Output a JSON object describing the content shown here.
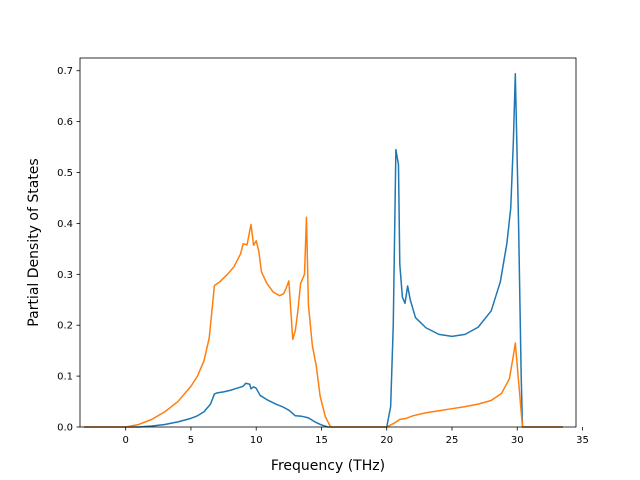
{
  "chart_data": {
    "type": "line",
    "title": "",
    "xlabel": "Frequency (THz)",
    "ylabel": "Partial Density of States",
    "xlim": [
      -3.5,
      34.5
    ],
    "ylim": [
      0.0,
      0.725
    ],
    "xticks": [
      0,
      5,
      10,
      15,
      20,
      25,
      30,
      35
    ],
    "yticks": [
      0.0,
      0.1,
      0.2,
      0.3,
      0.4,
      0.5,
      0.6,
      0.7
    ],
    "xtick_labels": [
      "0",
      "5",
      "10",
      "15",
      "20",
      "25",
      "30",
      "35"
    ],
    "ytick_labels": [
      "0.0",
      "0.1",
      "0.2",
      "0.3",
      "0.4",
      "0.5",
      "0.6",
      "0.7"
    ],
    "grid": false,
    "legend": false,
    "series": [
      {
        "color": "#1f77b4",
        "points": [
          [
            -3.2,
            0.0
          ],
          [
            0.0,
            0.0
          ],
          [
            1.0,
            0.0
          ],
          [
            2.0,
            0.002
          ],
          [
            3.0,
            0.005
          ],
          [
            4.0,
            0.01
          ],
          [
            5.0,
            0.017
          ],
          [
            5.5,
            0.022
          ],
          [
            6.0,
            0.03
          ],
          [
            6.5,
            0.045
          ],
          [
            6.8,
            0.065
          ],
          [
            7.0,
            0.067
          ],
          [
            7.5,
            0.069
          ],
          [
            8.0,
            0.072
          ],
          [
            8.5,
            0.076
          ],
          [
            9.0,
            0.08
          ],
          [
            9.2,
            0.086
          ],
          [
            9.5,
            0.084
          ],
          [
            9.6,
            0.075
          ],
          [
            9.8,
            0.079
          ],
          [
            10.0,
            0.076
          ],
          [
            10.3,
            0.062
          ],
          [
            10.8,
            0.054
          ],
          [
            11.5,
            0.045
          ],
          [
            12.0,
            0.04
          ],
          [
            12.5,
            0.033
          ],
          [
            13.0,
            0.022
          ],
          [
            13.5,
            0.021
          ],
          [
            14.0,
            0.018
          ],
          [
            14.5,
            0.01
          ],
          [
            15.0,
            0.004
          ],
          [
            15.5,
            0.0
          ],
          [
            20.0,
            0.0
          ],
          [
            20.3,
            0.04
          ],
          [
            20.5,
            0.2
          ],
          [
            20.7,
            0.545
          ],
          [
            20.9,
            0.515
          ],
          [
            21.0,
            0.32
          ],
          [
            21.2,
            0.255
          ],
          [
            21.4,
            0.243
          ],
          [
            21.6,
            0.277
          ],
          [
            21.8,
            0.25
          ],
          [
            22.2,
            0.215
          ],
          [
            23.0,
            0.195
          ],
          [
            24.0,
            0.182
          ],
          [
            25.0,
            0.178
          ],
          [
            26.0,
            0.182
          ],
          [
            27.0,
            0.196
          ],
          [
            28.0,
            0.228
          ],
          [
            28.7,
            0.285
          ],
          [
            29.2,
            0.36
          ],
          [
            29.5,
            0.43
          ],
          [
            29.7,
            0.56
          ],
          [
            29.85,
            0.694
          ],
          [
            30.1,
            0.4
          ],
          [
            30.3,
            0.1
          ],
          [
            30.4,
            0.0
          ],
          [
            33.5,
            0.0
          ]
        ]
      },
      {
        "color": "#ff7f0e",
        "points": [
          [
            -3.2,
            0.0
          ],
          [
            0.0,
            0.0
          ],
          [
            1.0,
            0.005
          ],
          [
            2.0,
            0.015
          ],
          [
            3.0,
            0.03
          ],
          [
            4.0,
            0.05
          ],
          [
            5.0,
            0.08
          ],
          [
            5.5,
            0.1
          ],
          [
            6.0,
            0.13
          ],
          [
            6.4,
            0.175
          ],
          [
            6.8,
            0.278
          ],
          [
            7.2,
            0.285
          ],
          [
            7.8,
            0.3
          ],
          [
            8.3,
            0.315
          ],
          [
            8.8,
            0.34
          ],
          [
            9.0,
            0.36
          ],
          [
            9.3,
            0.358
          ],
          [
            9.6,
            0.398
          ],
          [
            9.8,
            0.357
          ],
          [
            10.0,
            0.366
          ],
          [
            10.2,
            0.345
          ],
          [
            10.4,
            0.305
          ],
          [
            10.8,
            0.283
          ],
          [
            11.3,
            0.265
          ],
          [
            11.8,
            0.258
          ],
          [
            12.1,
            0.262
          ],
          [
            12.3,
            0.273
          ],
          [
            12.5,
            0.287
          ],
          [
            12.8,
            0.172
          ],
          [
            13.0,
            0.19
          ],
          [
            13.2,
            0.23
          ],
          [
            13.4,
            0.282
          ],
          [
            13.7,
            0.3
          ],
          [
            13.85,
            0.412
          ],
          [
            14.0,
            0.24
          ],
          [
            14.3,
            0.16
          ],
          [
            14.6,
            0.12
          ],
          [
            14.9,
            0.06
          ],
          [
            15.3,
            0.02
          ],
          [
            15.7,
            0.0
          ],
          [
            20.0,
            0.0
          ],
          [
            20.6,
            0.008
          ],
          [
            21.0,
            0.015
          ],
          [
            21.5,
            0.017
          ],
          [
            22.0,
            0.022
          ],
          [
            23.0,
            0.028
          ],
          [
            24.0,
            0.032
          ],
          [
            25.0,
            0.036
          ],
          [
            26.0,
            0.04
          ],
          [
            27.0,
            0.045
          ],
          [
            28.0,
            0.052
          ],
          [
            28.8,
            0.066
          ],
          [
            29.4,
            0.095
          ],
          [
            29.7,
            0.14
          ],
          [
            29.85,
            0.165
          ],
          [
            30.2,
            0.06
          ],
          [
            30.4,
            0.0
          ],
          [
            33.5,
            0.0
          ]
        ]
      }
    ]
  }
}
